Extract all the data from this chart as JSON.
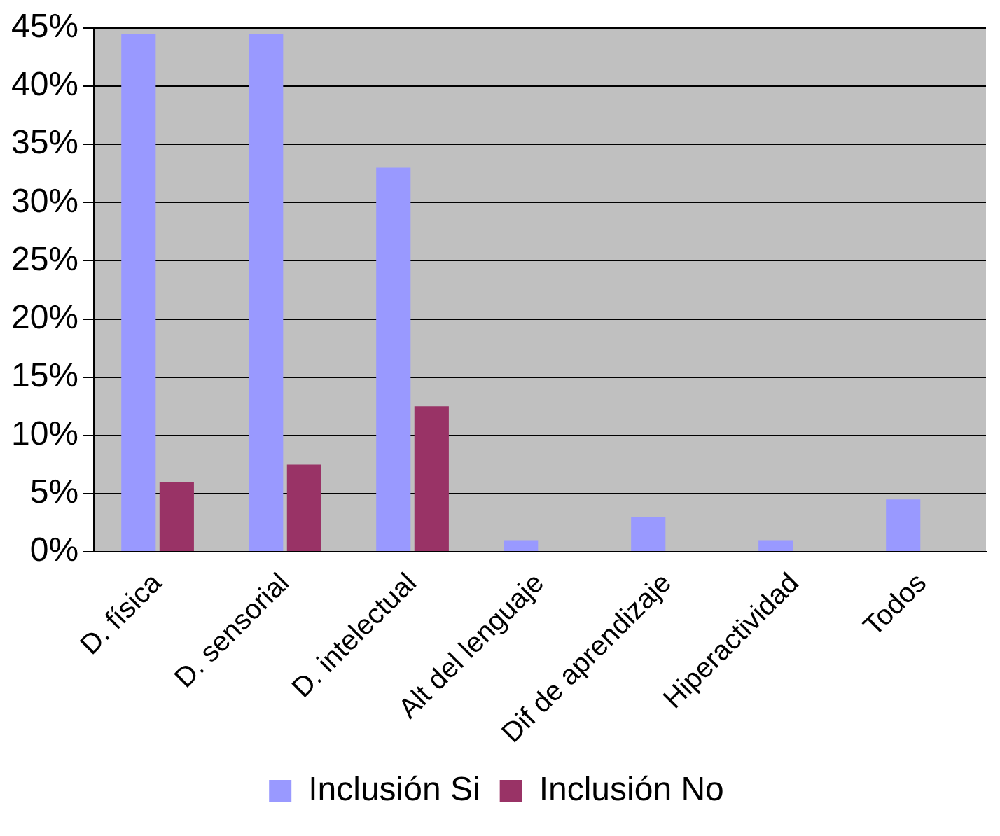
{
  "chart_data": {
    "type": "bar",
    "categories": [
      "D. física",
      "D. sensorial",
      "D. intelectual",
      "Alt del lenguaje",
      "Dif de aprendizaje",
      "Hiperactividad",
      "Todos"
    ],
    "series": [
      {
        "name": "Inclusión Si",
        "color": "#9999ff",
        "values": [
          44.5,
          44.5,
          33,
          1,
          3,
          1,
          4.5
        ]
      },
      {
        "name": "Inclusión No",
        "color": "#993366",
        "values": [
          6,
          7.5,
          12.5,
          null,
          null,
          null,
          null
        ]
      }
    ],
    "ylim": [
      0,
      45
    ],
    "yticks": [
      {
        "value": 0,
        "label": "0%"
      },
      {
        "value": 5,
        "label": "5%"
      },
      {
        "value": 10,
        "label": "10%"
      },
      {
        "value": 15,
        "label": "15%"
      },
      {
        "value": 20,
        "label": "20%"
      },
      {
        "value": 25,
        "label": "25%"
      },
      {
        "value": 30,
        "label": "30%"
      },
      {
        "value": 35,
        "label": "35%"
      },
      {
        "value": 40,
        "label": "40%"
      },
      {
        "value": 45,
        "label": "45%"
      }
    ],
    "grid": "y",
    "legend": "bottom"
  }
}
